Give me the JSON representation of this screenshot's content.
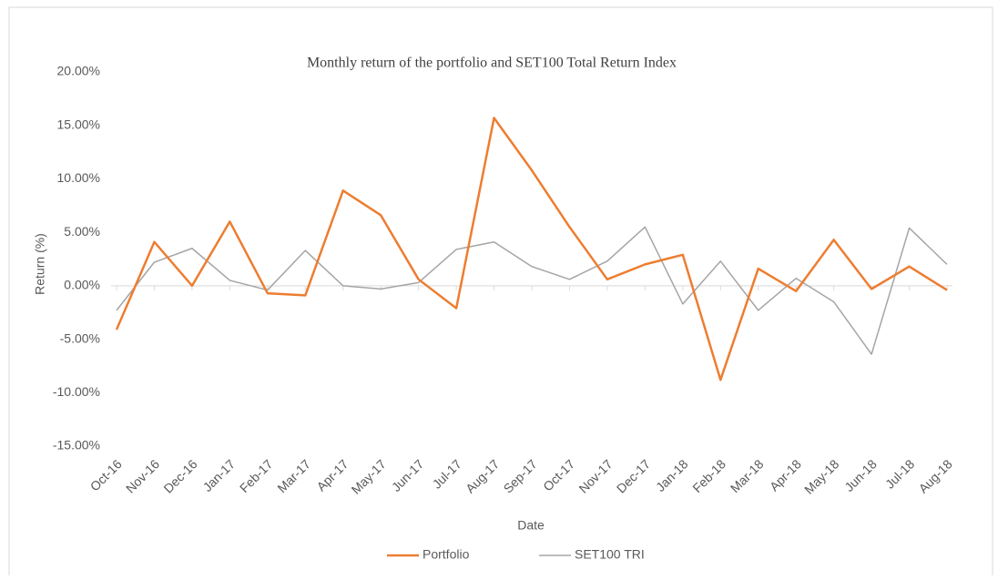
{
  "chart_data": {
    "type": "line",
    "title": "Monthly return of the portfolio and SET100 Total Return Index",
    "x_label": "Date",
    "y_label": "Return (%)",
    "categories": [
      "Oct-16",
      "Nov-16",
      "Dec-16",
      "Jan-17",
      "Feb-17",
      "Mar-17",
      "Apr-17",
      "May-17",
      "Jun-17",
      "Jul-17",
      "Aug-17",
      "Sep-17",
      "Oct-17",
      "Nov-17",
      "Dec-17",
      "Jan-18",
      "Feb-18",
      "Mar-18",
      "Apr-18",
      "May-18",
      "Jun-18",
      "Jul-18",
      "Aug-18"
    ],
    "series": [
      {
        "name": "Portfolio",
        "color": "#ed7d31",
        "values": [
          -4.1,
          4.1,
          0.0,
          6.0,
          -0.7,
          -0.9,
          8.9,
          6.6,
          0.6,
          -2.1,
          15.7,
          10.8,
          5.5,
          0.6,
          2.0,
          2.9,
          -8.8,
          1.6,
          -0.5,
          4.3,
          -0.3,
          1.8,
          -0.4
        ]
      },
      {
        "name": "SET100 TRI",
        "color": "#a5a5a5",
        "values": [
          -2.3,
          2.2,
          3.5,
          0.5,
          -0.4,
          3.3,
          0.0,
          -0.3,
          0.3,
          3.4,
          4.1,
          1.8,
          0.6,
          2.3,
          5.5,
          -1.7,
          2.3,
          -2.3,
          0.7,
          -1.5,
          -6.4,
          5.4,
          2.0
        ]
      }
    ],
    "ylim": [
      -15,
      20
    ],
    "yticks": [
      {
        "value": 20,
        "label": "20.00%"
      },
      {
        "value": 15,
        "label": "15.00%"
      },
      {
        "value": 10,
        "label": "10.00%"
      },
      {
        "value": 5,
        "label": "5.00%"
      },
      {
        "value": 0,
        "label": "0.00%"
      },
      {
        "value": -5,
        "label": "-5.00%"
      },
      {
        "value": -10,
        "label": "-10.00%"
      },
      {
        "value": -15,
        "label": "-15.00%"
      }
    ],
    "legend": "bottom"
  }
}
